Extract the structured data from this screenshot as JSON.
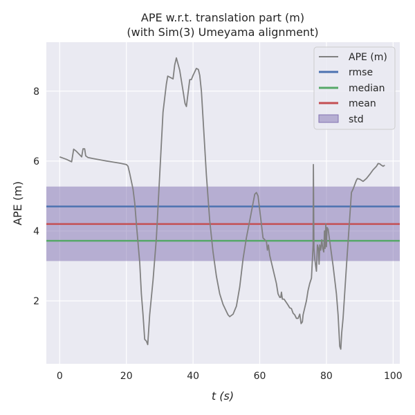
{
  "chart_data": {
    "type": "line",
    "title": "APE w.r.t. translation part (m)",
    "subtitle": "(with Sim(3) Umeyama alignment)",
    "xlabel": "t (s)",
    "ylabel": "APE (m)",
    "xlim": [
      -4,
      102
    ],
    "ylim": [
      0.2,
      9.4
    ],
    "xticks": [
      0,
      20,
      40,
      60,
      80,
      100
    ],
    "yticks": [
      2,
      4,
      6,
      8
    ],
    "grid": true,
    "legend_position": "top-right",
    "colors": {
      "background": "#EAEAF2",
      "grid": "#FFFFFF",
      "ape": "#808080",
      "rmse": "#4C72B0",
      "median": "#55A868",
      "mean": "#C44E52",
      "std": "#8172B2"
    },
    "stats": {
      "rmse": 4.7,
      "median": 3.72,
      "mean": 4.2,
      "std_low": 3.14,
      "std_high": 5.27
    },
    "legend": [
      "APE (m)",
      "rmse",
      "median",
      "mean",
      "std"
    ],
    "series": [
      {
        "name": "APE (m)",
        "points": [
          [
            0,
            6.12
          ],
          [
            2,
            6.05
          ],
          [
            3.6,
            5.98
          ],
          [
            4.2,
            6.34
          ],
          [
            5,
            6.28
          ],
          [
            6,
            6.18
          ],
          [
            6.6,
            6.12
          ],
          [
            7,
            6.35
          ],
          [
            7.5,
            6.35
          ],
          [
            7.8,
            6.15
          ],
          [
            8.5,
            6.1
          ],
          [
            10,
            6.07
          ],
          [
            14,
            6.0
          ],
          [
            18,
            5.94
          ],
          [
            20,
            5.9
          ],
          [
            20.5,
            5.85
          ],
          [
            21,
            5.65
          ],
          [
            22,
            5.2
          ],
          [
            22.5,
            4.8
          ],
          [
            23,
            4.2
          ],
          [
            24,
            3.1
          ],
          [
            24.5,
            2.2
          ],
          [
            25,
            1.6
          ],
          [
            25.5,
            0.9
          ],
          [
            26,
            0.85
          ],
          [
            26.4,
            0.75
          ],
          [
            27,
            1.6
          ],
          [
            28,
            2.6
          ],
          [
            29,
            3.8
          ],
          [
            30,
            5.6
          ],
          [
            31,
            7.4
          ],
          [
            32,
            8.2
          ],
          [
            32.4,
            8.43
          ],
          [
            34,
            8.35
          ],
          [
            34.5,
            8.75
          ],
          [
            35,
            8.95
          ],
          [
            36,
            8.6
          ],
          [
            37,
            8.0
          ],
          [
            37.6,
            7.65
          ],
          [
            38,
            7.56
          ],
          [
            39,
            8.33
          ],
          [
            39.5,
            8.33
          ],
          [
            40,
            8.45
          ],
          [
            41,
            8.65
          ],
          [
            41.6,
            8.62
          ],
          [
            42,
            8.45
          ],
          [
            42.5,
            8.0
          ],
          [
            43,
            7.2
          ],
          [
            44,
            5.6
          ],
          [
            45,
            4.3
          ],
          [
            46,
            3.4
          ],
          [
            47,
            2.7
          ],
          [
            48,
            2.2
          ],
          [
            49,
            1.9
          ],
          [
            50,
            1.7
          ],
          [
            50.5,
            1.6
          ],
          [
            51,
            1.55
          ],
          [
            52,
            1.62
          ],
          [
            53,
            1.85
          ],
          [
            54,
            2.4
          ],
          [
            55,
            3.2
          ],
          [
            56,
            3.8
          ],
          [
            57,
            4.3
          ],
          [
            58,
            4.8
          ],
          [
            58.5,
            5.05
          ],
          [
            59,
            5.1
          ],
          [
            59.5,
            5.0
          ],
          [
            60,
            4.6
          ],
          [
            60.5,
            4.2
          ],
          [
            61,
            3.8
          ],
          [
            62,
            3.7
          ],
          [
            62.3,
            3.45
          ],
          [
            62.6,
            3.6
          ],
          [
            63,
            3.3
          ],
          [
            64,
            2.9
          ],
          [
            65,
            2.5
          ],
          [
            65.5,
            2.2
          ],
          [
            66,
            2.1
          ],
          [
            66.3,
            2.1
          ],
          [
            66.5,
            2.25
          ],
          [
            66.8,
            2.05
          ],
          [
            67.3,
            2.05
          ],
          [
            68,
            1.95
          ],
          [
            68.5,
            1.88
          ],
          [
            69,
            1.8
          ],
          [
            69.5,
            1.78
          ],
          [
            70,
            1.65
          ],
          [
            70.5,
            1.6
          ],
          [
            71,
            1.5
          ],
          [
            71.5,
            1.5
          ],
          [
            72,
            1.62
          ],
          [
            72.4,
            1.35
          ],
          [
            72.8,
            1.4
          ],
          [
            73,
            1.6
          ],
          [
            73.5,
            1.8
          ],
          [
            74,
            2.0
          ],
          [
            74.5,
            2.3
          ],
          [
            75,
            2.5
          ],
          [
            75.5,
            2.65
          ],
          [
            75.8,
            3.2
          ],
          [
            76,
            3.6
          ],
          [
            76.1,
            5.9
          ],
          [
            76.25,
            3.5
          ],
          [
            76.5,
            3.2
          ],
          [
            77,
            2.85
          ],
          [
            77.3,
            3.6
          ],
          [
            77.6,
            3.5
          ],
          [
            77.8,
            3.05
          ],
          [
            78,
            3.6
          ],
          [
            78.3,
            3.45
          ],
          [
            78.6,
            3.75
          ],
          [
            78.9,
            3.5
          ],
          [
            79.2,
            3.4
          ],
          [
            79.4,
            4.0
          ],
          [
            79.6,
            3.5
          ],
          [
            79.8,
            4.2
          ],
          [
            80,
            3.55
          ],
          [
            80.2,
            4.1
          ],
          [
            80.5,
            4.05
          ],
          [
            81,
            3.7
          ],
          [
            82,
            3.0
          ],
          [
            82.5,
            2.6
          ],
          [
            83,
            2.2
          ],
          [
            83.5,
            1.6
          ],
          [
            84,
            0.7
          ],
          [
            84.3,
            0.62
          ],
          [
            84.6,
            1.1
          ],
          [
            85,
            1.5
          ],
          [
            86,
            3.0
          ],
          [
            87,
            4.4
          ],
          [
            87.5,
            5.1
          ],
          [
            88,
            5.2
          ],
          [
            89,
            5.45
          ],
          [
            89.3,
            5.5
          ],
          [
            90,
            5.48
          ],
          [
            91,
            5.42
          ],
          [
            92,
            5.5
          ],
          [
            93,
            5.62
          ],
          [
            94,
            5.75
          ],
          [
            95,
            5.85
          ],
          [
            95.5,
            5.93
          ],
          [
            96,
            5.92
          ],
          [
            96.5,
            5.88
          ],
          [
            97,
            5.85
          ],
          [
            97.5,
            5.88
          ]
        ]
      }
    ]
  }
}
